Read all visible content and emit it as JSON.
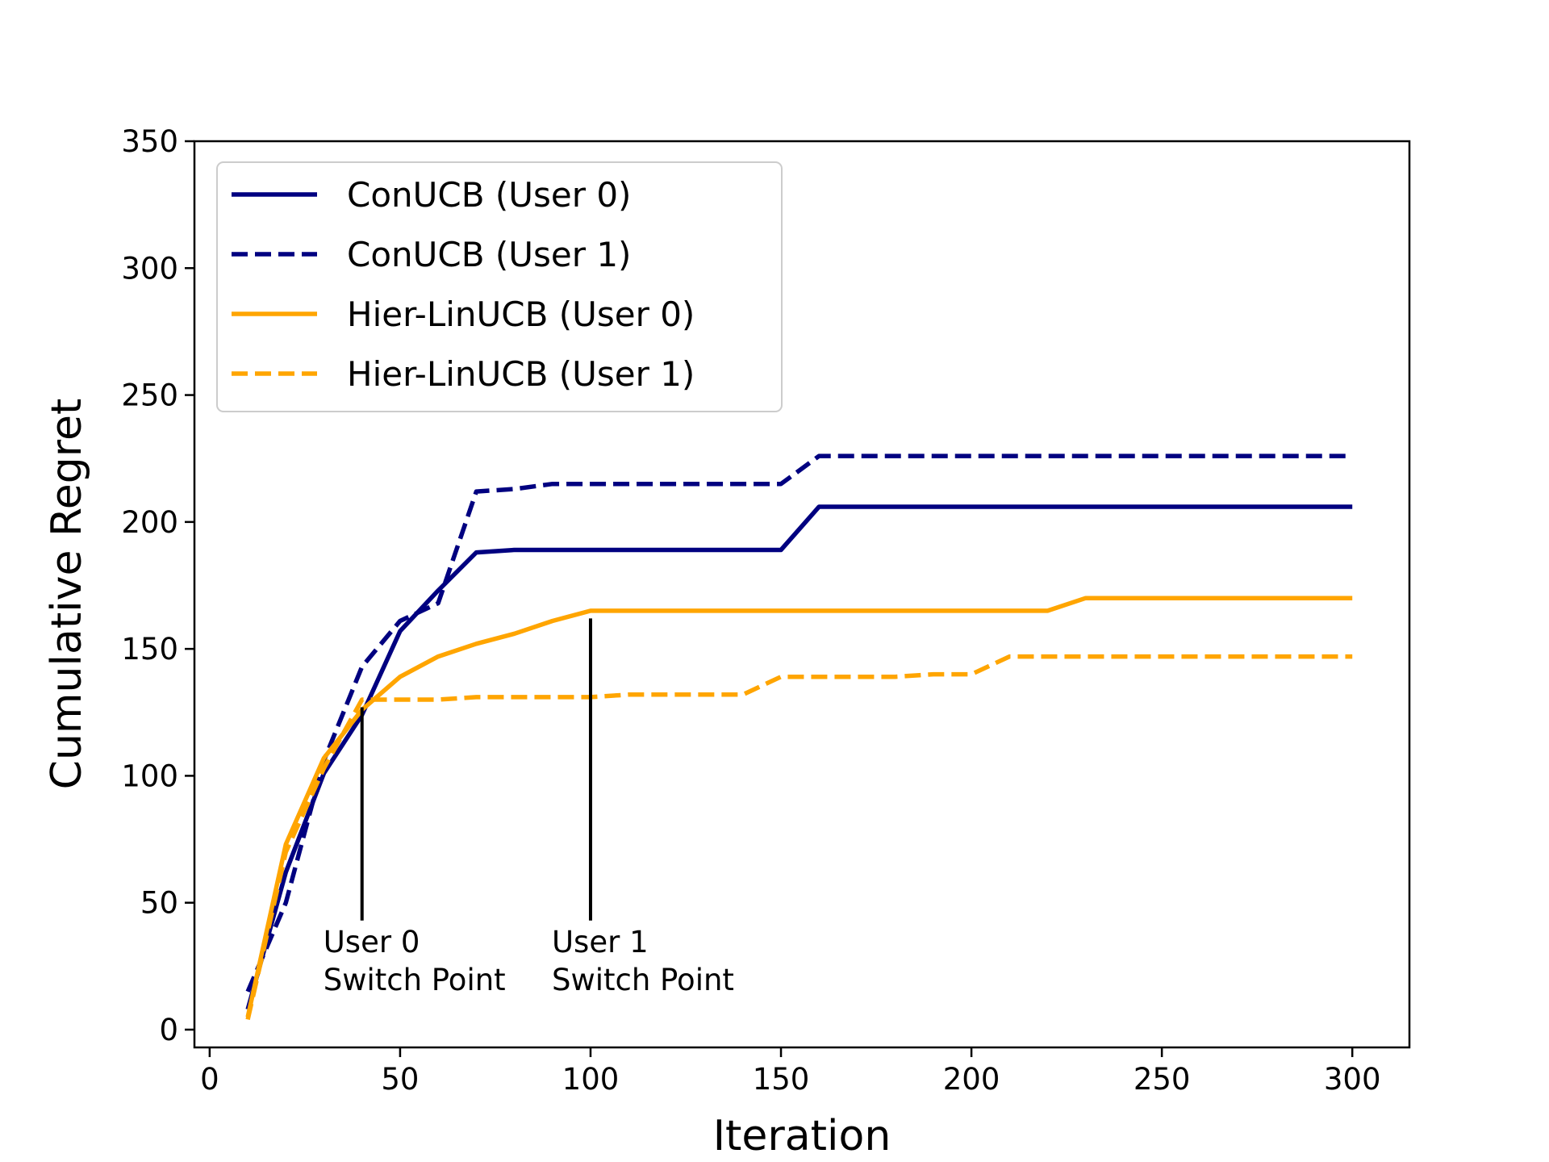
{
  "chart_data": {
    "type": "line",
    "title": "",
    "xlabel": "Iteration",
    "ylabel": "Cumulative Regret",
    "xlim": [
      -4,
      315
    ],
    "ylim": [
      -7,
      350
    ],
    "xticks": [
      0,
      50,
      100,
      150,
      200,
      250,
      300
    ],
    "yticks": [
      0,
      50,
      100,
      150,
      200,
      250,
      300,
      350
    ],
    "grid": false,
    "legend_position": "top-left",
    "x": [
      10,
      20,
      30,
      40,
      50,
      60,
      70,
      80,
      90,
      100,
      110,
      120,
      130,
      140,
      150,
      160,
      170,
      180,
      190,
      200,
      210,
      220,
      230,
      240,
      250,
      260,
      270,
      280,
      290,
      300
    ],
    "series": [
      {
        "name": "ConUCB (User 0)",
        "color": "#000080",
        "style": "solid",
        "values": [
          8,
          62,
          101,
          124,
          157,
          173,
          188,
          189,
          189,
          189,
          189,
          189,
          189,
          189,
          189,
          206,
          206,
          206,
          206,
          206,
          206,
          206,
          206,
          206,
          206,
          206,
          206,
          206,
          206,
          206
        ]
      },
      {
        "name": "ConUCB (User 1)",
        "color": "#000080",
        "style": "dashed",
        "values": [
          15,
          50,
          106,
          143,
          161,
          168,
          212,
          213,
          215,
          215,
          215,
          215,
          215,
          215,
          215,
          226,
          226,
          226,
          226,
          226,
          226,
          226,
          226,
          226,
          226,
          226,
          226,
          226,
          226,
          226
        ]
      },
      {
        "name": "Hier-LinUCB (User 0)",
        "color": "#FFA500",
        "style": "solid",
        "values": [
          5,
          73,
          107,
          126,
          139,
          147,
          152,
          156,
          161,
          165,
          165,
          165,
          165,
          165,
          165,
          165,
          165,
          165,
          165,
          165,
          165,
          165,
          170,
          170,
          170,
          170,
          170,
          170,
          170,
          170
        ]
      },
      {
        "name": "Hier-LinUCB (User 1)",
        "color": "#FFA500",
        "style": "dashed",
        "values": [
          4,
          70,
          103,
          130,
          130,
          130,
          131,
          131,
          131,
          131,
          132,
          132,
          132,
          132,
          139,
          139,
          139,
          139,
          140,
          140,
          147,
          147,
          147,
          147,
          147,
          147,
          147,
          147,
          147,
          147
        ]
      }
    ],
    "annotations": [
      {
        "text_line1": "User 0",
        "text_line2": "Switch Point",
        "x": 40,
        "y_top": 127,
        "y_bottom": 43
      },
      {
        "text_line1": "User 1",
        "text_line2": "Switch Point",
        "x": 100,
        "y_top": 162,
        "y_bottom": 43
      }
    ]
  }
}
